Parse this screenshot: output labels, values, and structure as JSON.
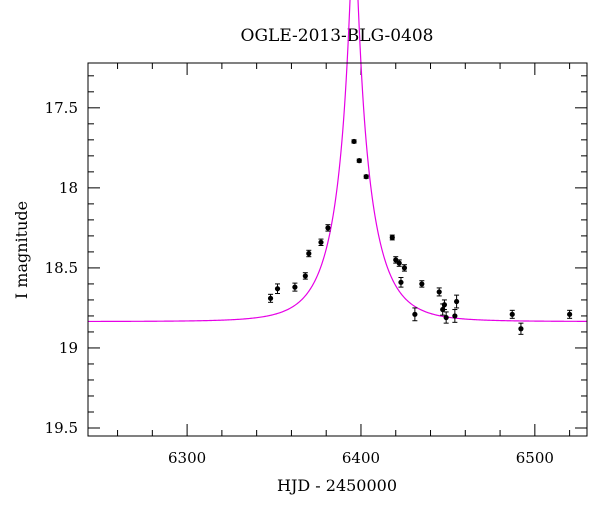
{
  "chart_data": {
    "type": "scatter",
    "title": "OGLE-2013-BLG-0408",
    "xlabel": "HJD - 2450000",
    "ylabel": "I magnitude",
    "xlim": [
      6243,
      6530
    ],
    "ylim": [
      19.55,
      17.22
    ],
    "y_inverted": true,
    "x_ticks": [
      6300,
      6400,
      6500
    ],
    "x_tick_labels": [
      "6300",
      "6400",
      "6500"
    ],
    "y_ticks": [
      17.5,
      18,
      18.5,
      19,
      19.5
    ],
    "y_tick_labels": [
      "17.5",
      "18",
      "18.5",
      "19",
      "19.5"
    ],
    "grid": false,
    "legend": "none",
    "colors": {
      "points": "#000000",
      "model": "#e600e6",
      "axes": "#000000"
    },
    "series": [
      {
        "type": "scatter",
        "points": [
          {
            "x": 6348,
            "y": 18.69,
            "err": 0.025
          },
          {
            "x": 6352,
            "y": 18.63,
            "err": 0.03
          },
          {
            "x": 6362,
            "y": 18.62,
            "err": 0.025
          },
          {
            "x": 6368,
            "y": 18.55,
            "err": 0.02
          },
          {
            "x": 6370,
            "y": 18.41,
            "err": 0.02
          },
          {
            "x": 6377,
            "y": 18.34,
            "err": 0.02
          },
          {
            "x": 6381,
            "y": 18.25,
            "err": 0.02
          },
          {
            "x": 6396,
            "y": 17.71,
            "err": 0.01
          },
          {
            "x": 6399,
            "y": 17.83,
            "err": 0.01
          },
          {
            "x": 6403,
            "y": 17.93,
            "err": 0.01
          },
          {
            "x": 6418,
            "y": 18.31,
            "err": 0.015
          },
          {
            "x": 6420,
            "y": 18.45,
            "err": 0.02
          },
          {
            "x": 6422,
            "y": 18.47,
            "err": 0.02
          },
          {
            "x": 6423,
            "y": 18.59,
            "err": 0.03
          },
          {
            "x": 6425,
            "y": 18.5,
            "err": 0.02
          },
          {
            "x": 6431,
            "y": 18.79,
            "err": 0.04
          },
          {
            "x": 6435,
            "y": 18.6,
            "err": 0.02
          },
          {
            "x": 6445,
            "y": 18.65,
            "err": 0.025
          },
          {
            "x": 6447,
            "y": 18.76,
            "err": 0.035
          },
          {
            "x": 6448,
            "y": 18.73,
            "err": 0.03
          },
          {
            "x": 6449,
            "y": 18.81,
            "err": 0.035
          },
          {
            "x": 6454,
            "y": 18.8,
            "err": 0.04
          },
          {
            "x": 6455,
            "y": 18.71,
            "err": 0.04
          },
          {
            "x": 6487,
            "y": 18.79,
            "err": 0.025
          },
          {
            "x": 6492,
            "y": 18.88,
            "err": 0.035
          },
          {
            "x": 6520,
            "y": 18.79,
            "err": 0.025
          }
        ]
      },
      {
        "type": "line",
        "model": "point-lens",
        "t0": 6396,
        "tE": 21,
        "u0": 0.095,
        "baseline_mag": 18.835,
        "blend_fraction": 0.1
      }
    ]
  }
}
